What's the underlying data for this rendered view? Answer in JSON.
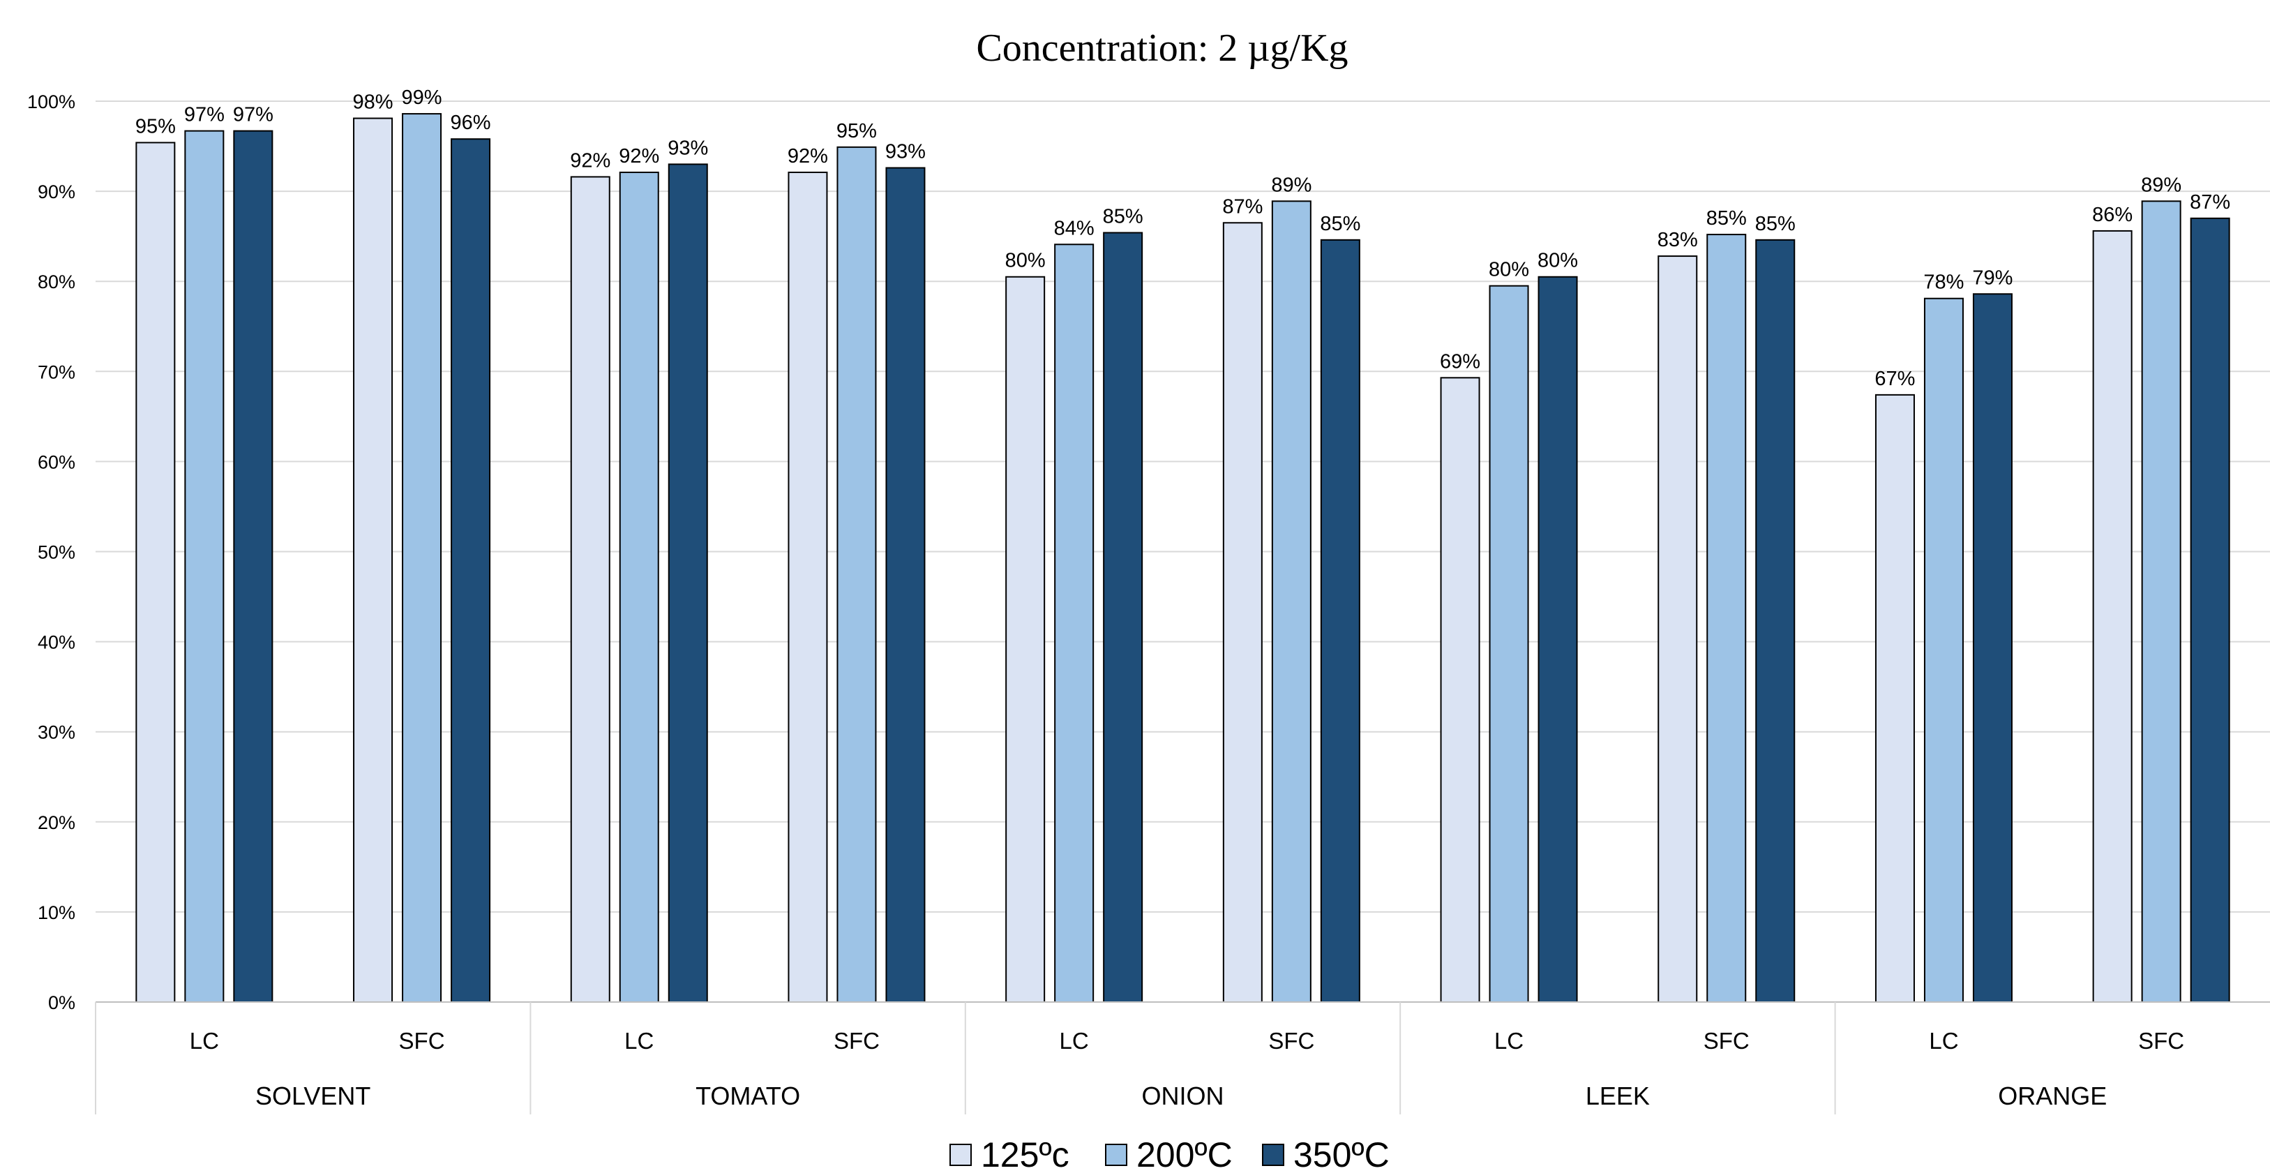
{
  "chart_data": {
    "type": "bar",
    "title": "Concentration: 2 µg/Kg",
    "xlabel": "",
    "ylabel": "",
    "ylim": [
      0,
      100
    ],
    "y_ticks": [
      "0%",
      "10%",
      "20%",
      "30%",
      "40%",
      "50%",
      "60%",
      "70%",
      "80%",
      "90%",
      "100%"
    ],
    "grid": true,
    "legend_position": "bottom",
    "groups": [
      {
        "label": "SOLVENT",
        "subcategories": [
          "LC",
          "SFC"
        ]
      },
      {
        "label": "TOMATO",
        "subcategories": [
          "LC",
          "SFC"
        ]
      },
      {
        "label": "ONION",
        "subcategories": [
          "LC",
          "SFC"
        ]
      },
      {
        "label": "LEEK",
        "subcategories": [
          "LC",
          "SFC"
        ]
      },
      {
        "label": "ORANGE",
        "subcategories": [
          "LC",
          "SFC"
        ]
      }
    ],
    "categories": [
      "SOLVENT LC",
      "SOLVENT SFC",
      "TOMATO LC",
      "TOMATO SFC",
      "ONION LC",
      "ONION SFC",
      "LEEK LC",
      "LEEK SFC",
      "ORANGE LC",
      "ORANGE SFC"
    ],
    "series": [
      {
        "name": "125ºc",
        "color": "#dae3f3",
        "values": [
          95.4,
          98.1,
          91.6,
          92.1,
          80.5,
          86.5,
          69.3,
          82.8,
          67.4,
          85.6
        ],
        "labels": [
          "95%",
          "98%",
          "92%",
          "92%",
          "80%",
          "87%",
          "69%",
          "83%",
          "67%",
          "86%"
        ]
      },
      {
        "name": "200ºC",
        "color": "#9dc3e6",
        "values": [
          96.7,
          98.6,
          92.1,
          94.9,
          84.1,
          88.9,
          79.5,
          85.2,
          78.1,
          88.9
        ],
        "labels": [
          "97%",
          "99%",
          "92%",
          "95%",
          "84%",
          "89%",
          "80%",
          "85%",
          "78%",
          "89%"
        ]
      },
      {
        "name": "350ºC",
        "color": "#1f4e79",
        "values": [
          96.7,
          95.8,
          93.0,
          92.6,
          85.4,
          84.6,
          80.5,
          84.6,
          78.6,
          87.0
        ],
        "labels": [
          "97%",
          "96%",
          "93%",
          "93%",
          "85%",
          "85%",
          "80%",
          "85%",
          "79%",
          "87%"
        ]
      }
    ]
  }
}
